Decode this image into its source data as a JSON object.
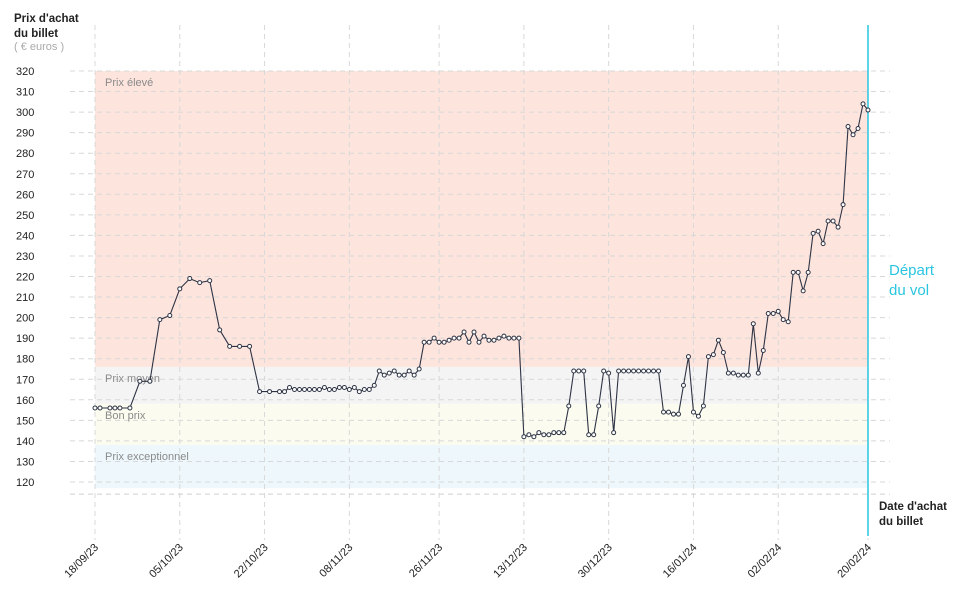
{
  "chart_data": {
    "type": "line",
    "y_label_lines": [
      "Prix d'achat",
      "du billet"
    ],
    "y_unit": "( € euros )",
    "x_label_lines": [
      "Date d'achat",
      "du billet"
    ],
    "departure": {
      "x": "2024-02-20",
      "label_lines": [
        "Départ",
        "du vol"
      ],
      "color": "#29c5e0"
    },
    "zones": [
      {
        "name": "Prix élevé",
        "range": [
          176,
          320
        ],
        "color": "#fde4dd"
      },
      {
        "name": "Prix moyen",
        "range": [
          158,
          176
        ],
        "color": "#f4f4f4"
      },
      {
        "name": "Bon prix",
        "range": [
          138,
          158
        ],
        "color": "#fbfbef"
      },
      {
        "name": "Prix exceptionnel",
        "range": [
          117,
          138
        ],
        "color": "#eef8fc"
      }
    ],
    "xlim": [
      "2023-09-18",
      "2024-02-20"
    ],
    "xticks": [
      {
        "value": "2023-09-18",
        "label": "18/09/23"
      },
      {
        "value": "2023-10-05",
        "label": "05/10/23"
      },
      {
        "value": "2023-10-22",
        "label": "22/10/23"
      },
      {
        "value": "2023-11-08",
        "label": "08/11/23"
      },
      {
        "value": "2023-11-26",
        "label": "26/11/23"
      },
      {
        "value": "2023-12-13",
        "label": "13/12/23"
      },
      {
        "value": "2023-12-30",
        "label": "30/12/23"
      },
      {
        "value": "2024-01-16",
        "label": "16/01/24"
      },
      {
        "value": "2024-02-02",
        "label": "02/02/24"
      },
      {
        "value": "2024-02-20",
        "label": "20/02/24"
      }
    ],
    "ylim": [
      117,
      320
    ],
    "yticks": [
      120,
      130,
      140,
      150,
      160,
      170,
      180,
      190,
      200,
      210,
      220,
      230,
      240,
      250,
      260,
      270,
      280,
      290,
      300,
      310,
      320
    ],
    "grid": true,
    "color": "#2e3445",
    "x": [
      "2023-09-18",
      "2023-09-19",
      "2023-09-21",
      "2023-09-22",
      "2023-09-23",
      "2023-09-25",
      "2023-09-27",
      "2023-09-29",
      "2023-10-01",
      "2023-10-03",
      "2023-10-05",
      "2023-10-07",
      "2023-10-09",
      "2023-10-11",
      "2023-10-13",
      "2023-10-15",
      "2023-10-17",
      "2023-10-19",
      "2023-10-21",
      "2023-10-23",
      "2023-10-25",
      "2023-10-26",
      "2023-10-27",
      "2023-10-28",
      "2023-10-29",
      "2023-10-30",
      "2023-10-31",
      "2023-11-01",
      "2023-11-02",
      "2023-11-03",
      "2023-11-04",
      "2023-11-05",
      "2023-11-06",
      "2023-11-07",
      "2023-11-08",
      "2023-11-09",
      "2023-11-10",
      "2023-11-11",
      "2023-11-12",
      "2023-11-13",
      "2023-11-14",
      "2023-11-15",
      "2023-11-16",
      "2023-11-17",
      "2023-11-18",
      "2023-11-19",
      "2023-11-20",
      "2023-11-21",
      "2023-11-22",
      "2023-11-23",
      "2023-11-24",
      "2023-11-25",
      "2023-11-26",
      "2023-11-27",
      "2023-11-28",
      "2023-11-29",
      "2023-11-30",
      "2023-12-01",
      "2023-12-02",
      "2023-12-03",
      "2023-12-04",
      "2023-12-05",
      "2023-12-06",
      "2023-12-07",
      "2023-12-08",
      "2023-12-09",
      "2023-12-10",
      "2023-12-11",
      "2023-12-12",
      "2023-12-13",
      "2023-12-14",
      "2023-12-15",
      "2023-12-16",
      "2023-12-17",
      "2023-12-18",
      "2023-12-19",
      "2023-12-20",
      "2023-12-21",
      "2023-12-22",
      "2023-12-23",
      "2023-12-24",
      "2023-12-25",
      "2023-12-26",
      "2023-12-27",
      "2023-12-28",
      "2023-12-29",
      "2023-12-30",
      "2023-12-31",
      "2024-01-01",
      "2024-01-02",
      "2024-01-03",
      "2024-01-04",
      "2024-01-05",
      "2024-01-06",
      "2024-01-07",
      "2024-01-08",
      "2024-01-09",
      "2024-01-10",
      "2024-01-11",
      "2024-01-12",
      "2024-01-13",
      "2024-01-14",
      "2024-01-15",
      "2024-01-16",
      "2024-01-17",
      "2024-01-18",
      "2024-01-19",
      "2024-01-20",
      "2024-01-21",
      "2024-01-22",
      "2024-01-23",
      "2024-01-24",
      "2024-01-25",
      "2024-01-26",
      "2024-01-27",
      "2024-01-28",
      "2024-01-29",
      "2024-01-30",
      "2024-01-31",
      "2024-02-01",
      "2024-02-02",
      "2024-02-03",
      "2024-02-04",
      "2024-02-05",
      "2024-02-06",
      "2024-02-07",
      "2024-02-08",
      "2024-02-09",
      "2024-02-10",
      "2024-02-11",
      "2024-02-12",
      "2024-02-13",
      "2024-02-14",
      "2024-02-15",
      "2024-02-16",
      "2024-02-17",
      "2024-02-18",
      "2024-02-19",
      "2024-02-20"
    ],
    "values": [
      156,
      156,
      156,
      156,
      156,
      156,
      169,
      169,
      199,
      201,
      214,
      219,
      217,
      218,
      194,
      186,
      186,
      186,
      164,
      164,
      164,
      164,
      166,
      165,
      165,
      165,
      165,
      165,
      165,
      166,
      165,
      165,
      166,
      166,
      165,
      166,
      164,
      165,
      165,
      167,
      174,
      172,
      173,
      174,
      172,
      172,
      174,
      172,
      175,
      188,
      188,
      190,
      188,
      188,
      189,
      190,
      190,
      193,
      188,
      193,
      188,
      191,
      189,
      189,
      190,
      191,
      190,
      190,
      190,
      142,
      143,
      142,
      144,
      143,
      143,
      144,
      144,
      144,
      157,
      174,
      174,
      174,
      143,
      143,
      157,
      174,
      173,
      144,
      174,
      174,
      174,
      174,
      174,
      174,
      174,
      174,
      174,
      154,
      154,
      153,
      153,
      167,
      181,
      154,
      152,
      157,
      181,
      182,
      189,
      183,
      173,
      173,
      172,
      172,
      172,
      197,
      173,
      184,
      202,
      202,
      203,
      199,
      198,
      222,
      222,
      213,
      222,
      241,
      242,
      236,
      247,
      247,
      244,
      255,
      293,
      289,
      292,
      304,
      301
    ]
  }
}
